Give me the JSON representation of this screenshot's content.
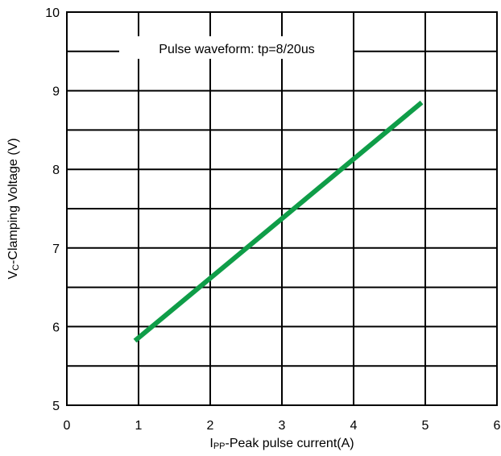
{
  "chart_data": {
    "type": "line",
    "title": "",
    "xlabel": {
      "main": "I",
      "sub": "PP",
      "rest": "-Peak pulse current(A)"
    },
    "ylabel": {
      "main": "V",
      "sub": "C",
      "rest": "-Clamping Voltage (V)"
    },
    "xlim": [
      0,
      6
    ],
    "ylim": [
      5,
      10
    ],
    "x_ticks": [
      "0",
      "1",
      "2",
      "3",
      "4",
      "5",
      "6"
    ],
    "y_ticks": [
      "5",
      "6",
      "7",
      "8",
      "9",
      "10"
    ],
    "grid": true,
    "annotation": "Pulse waveform: tp=8/20us",
    "series": [
      {
        "color": "#0f9d48",
        "x": [
          0.95,
          4.95
        ],
        "y": [
          5.82,
          8.85
        ]
      }
    ]
  }
}
